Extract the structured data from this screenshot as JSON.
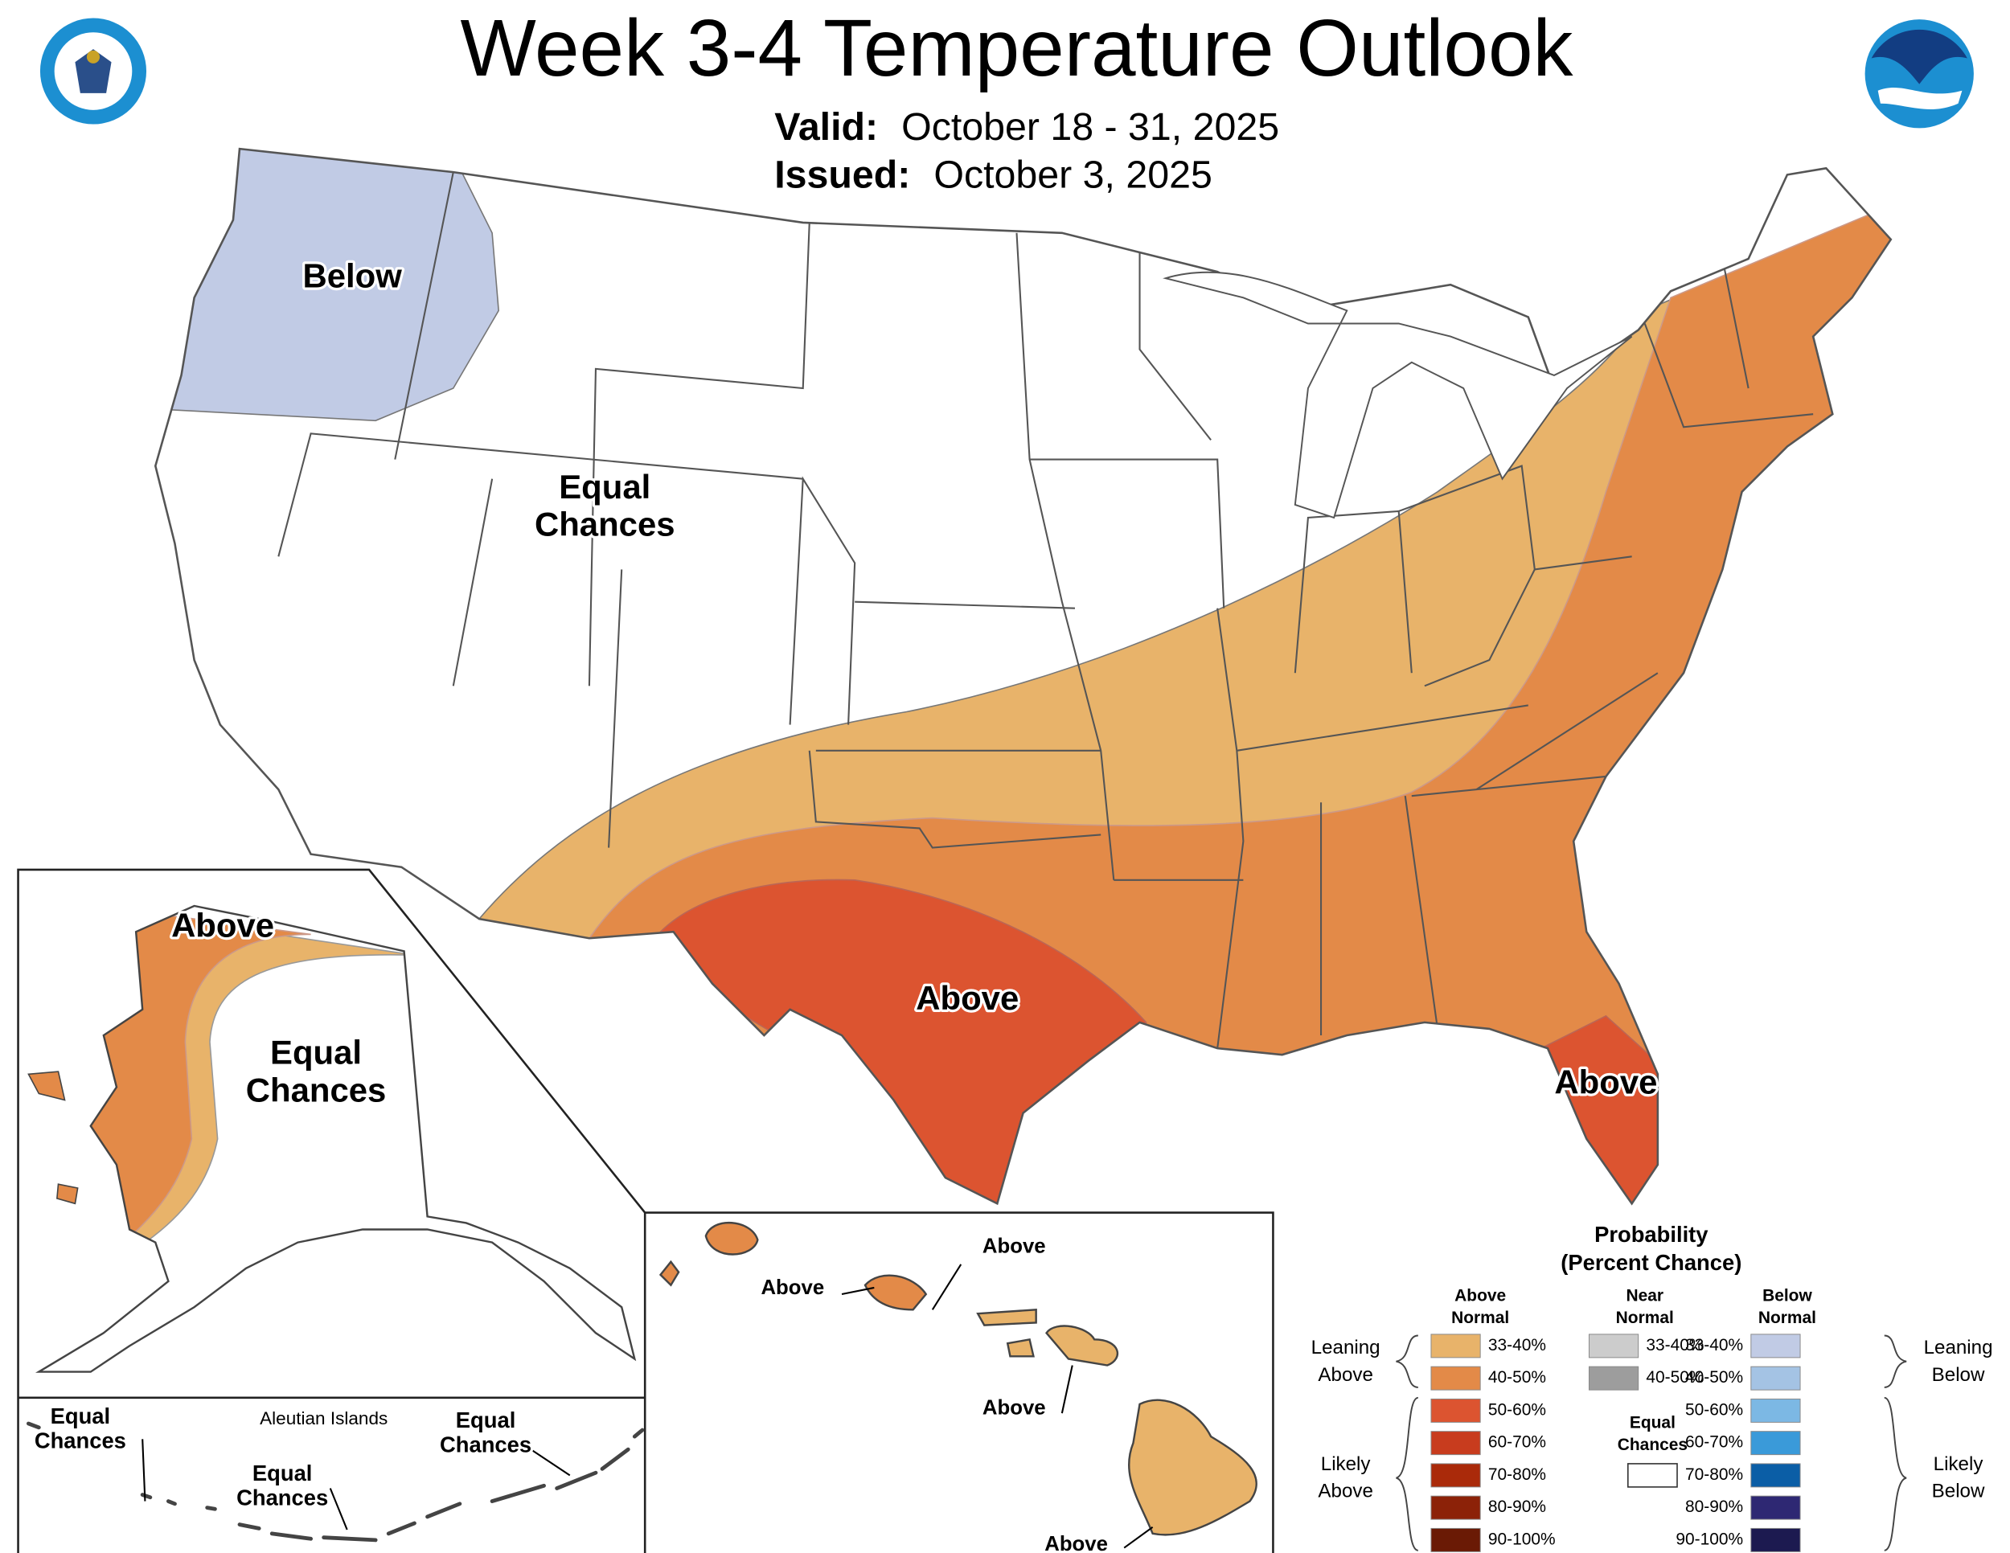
{
  "header": {
    "title": "Week 3-4 Temperature Outlook",
    "valid_label": "Valid:",
    "valid": "October 18 - 31, 2025",
    "issued_label": "Issued:",
    "issued": "October 3, 2025"
  },
  "contiguous": {
    "labels": [
      {
        "lines": [
          "Below"
        ]
      },
      {
        "lines": [
          "Equal",
          "Chances"
        ]
      },
      {
        "lines": [
          "Above"
        ]
      },
      {
        "lines": [
          "Above"
        ]
      }
    ]
  },
  "alaska": {
    "labels": [
      {
        "lines": [
          "Above"
        ]
      },
      {
        "lines": [
          "Equal",
          "Chances"
        ]
      }
    ]
  },
  "aleutians": {
    "title": "Aleutian Islands",
    "labels": [
      {
        "lines": [
          "Equal",
          "Chances"
        ]
      },
      {
        "lines": [
          "Equal",
          "Chances"
        ]
      },
      {
        "lines": [
          "Equal",
          "Chances"
        ]
      }
    ]
  },
  "hawaii": {
    "labels": [
      {
        "lines": [
          "Above"
        ]
      },
      {
        "lines": [
          "Above"
        ]
      },
      {
        "lines": [
          "Above"
        ]
      },
      {
        "lines": [
          "Above"
        ]
      }
    ]
  },
  "legend": {
    "title": "Probability",
    "subtitle": "(Percent Chance)",
    "above": {
      "heading": [
        "Above",
        "Normal"
      ],
      "rows": [
        {
          "label": "33-40%",
          "color": "#e8b36a"
        },
        {
          "label": "40-50%",
          "color": "#e38a48"
        },
        {
          "label": "50-60%",
          "color": "#dc5430"
        },
        {
          "label": "60-70%",
          "color": "#c83c1e"
        },
        {
          "label": "70-80%",
          "color": "#aa2a0a"
        },
        {
          "label": "80-90%",
          "color": "#8c2208"
        },
        {
          "label": "90-100%",
          "color": "#6a1a05"
        }
      ]
    },
    "near": {
      "heading": [
        "Near",
        "Normal"
      ],
      "rows": [
        {
          "label": "33-40%",
          "color": "#cccccc"
        },
        {
          "label": "40-50%",
          "color": "#9d9d9d"
        }
      ]
    },
    "equal": {
      "lines": [
        "Equal",
        "Chances"
      ],
      "color": "#ffffff"
    },
    "below": {
      "heading": [
        "Below",
        "Normal"
      ],
      "rows": [
        {
          "label": "33-40%",
          "color": "#c1cbe5"
        },
        {
          "label": "40-50%",
          "color": "#a4c3e4"
        },
        {
          "label": "50-60%",
          "color": "#7cb8e4"
        },
        {
          "label": "60-70%",
          "color": "#3a9ad9"
        },
        {
          "label": "70-80%",
          "color": "#0b5ea6"
        },
        {
          "label": "80-90%",
          "color": "#2e2873"
        },
        {
          "label": "90-100%",
          "color": "#1c1a50"
        }
      ]
    },
    "groups": {
      "leaning_above": [
        "Leaning",
        "Above"
      ],
      "likely_above": [
        "Likely",
        "Above"
      ],
      "leaning_below": [
        "Leaning",
        "Below"
      ],
      "likely_below": [
        "Likely",
        "Below"
      ]
    }
  }
}
